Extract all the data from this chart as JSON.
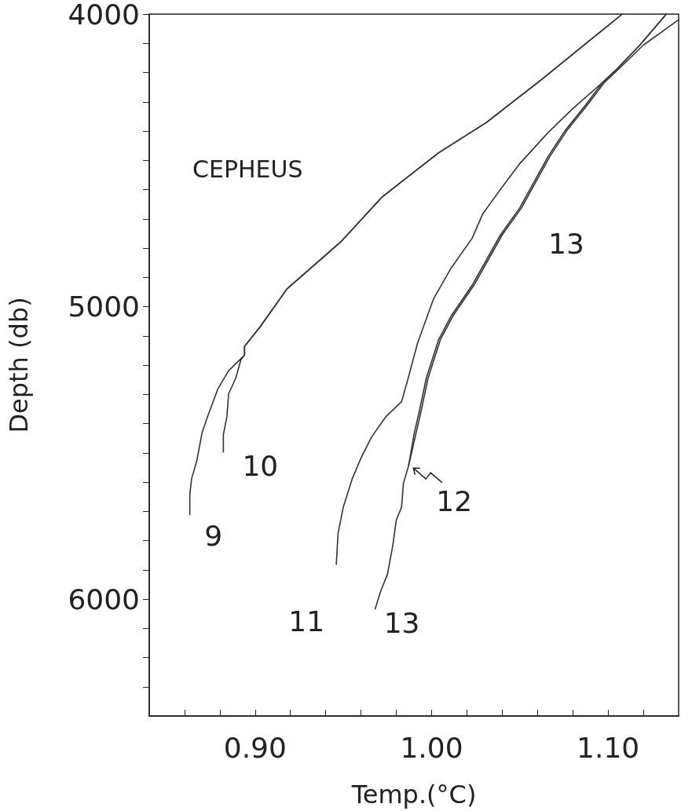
{
  "chart_data": {
    "type": "line",
    "xlabel": "Temp.(°C)",
    "ylabel": "Depth (db)",
    "xlim": [
      0.84,
      1.14
    ],
    "xticks": [
      {
        "value": 0.86,
        "label": null
      },
      {
        "value": 0.88,
        "label": null
      },
      {
        "value": 0.9,
        "label": "0.90"
      },
      {
        "value": 0.92,
        "label": null
      },
      {
        "value": 0.94,
        "label": null
      },
      {
        "value": 0.96,
        "label": null
      },
      {
        "value": 0.98,
        "label": null
      },
      {
        "value": 1.0,
        "label": "1.00"
      },
      {
        "value": 1.02,
        "label": null
      },
      {
        "value": 1.04,
        "label": null
      },
      {
        "value": 1.06,
        "label": null
      },
      {
        "value": 1.08,
        "label": null
      },
      {
        "value": 1.1,
        "label": "1.10"
      },
      {
        "value": 1.12,
        "label": null
      }
    ],
    "ylim": [
      6400,
      4000
    ],
    "yticks": [
      4000,
      {
        "value": 4100,
        "label": null
      },
      {
        "value": 4200,
        "label": null
      },
      {
        "value": 4300,
        "label": null
      },
      {
        "value": 4400,
        "label": null
      },
      {
        "value": 4500,
        "label": null
      },
      {
        "value": 4600,
        "label": null
      },
      {
        "value": 4700,
        "label": null
      },
      {
        "value": 4800,
        "label": null
      },
      {
        "value": 4900,
        "label": null
      },
      5000,
      {
        "value": 5100,
        "label": null
      },
      {
        "value": 5200,
        "label": null
      },
      {
        "value": 5300,
        "label": null
      },
      {
        "value": 5400,
        "label": null
      },
      {
        "value": 5500,
        "label": null
      },
      {
        "value": 5600,
        "label": null
      },
      {
        "value": 5700,
        "label": null
      },
      {
        "value": 5800,
        "label": null
      },
      {
        "value": 5900,
        "label": null
      },
      6000,
      {
        "value": 6100,
        "label": null
      },
      {
        "value": 6200,
        "label": null
      },
      {
        "value": 6300,
        "label": null
      }
    ],
    "grid": false,
    "legend": false,
    "marker": "none",
    "line_style": "solid",
    "annotations": [
      "CEPHEUS",
      "13"
    ],
    "series": [
      {
        "name": "9",
        "color": "#333333",
        "x": [
          1.108,
          1.062,
          1.031,
          1.004,
          0.972,
          0.949,
          0.918,
          0.903,
          0.894,
          0.894,
          0.885,
          0.879,
          0.873,
          0.87,
          0.867,
          0.864,
          0.863,
          0.863
        ],
        "values": [
          4000,
          4225,
          4371,
          4474,
          4625,
          4776,
          4940,
          5068,
          5136,
          5166,
          5219,
          5280,
          5377,
          5430,
          5526,
          5589,
          5642,
          5711
        ]
      },
      {
        "name": "10",
        "color": "#333333",
        "x": [
          1.108,
          1.062,
          1.031,
          1.004,
          0.972,
          0.949,
          0.918,
          0.903,
          0.894,
          0.894,
          0.892,
          0.889,
          0.885,
          0.884,
          0.882,
          0.882
        ],
        "values": [
          4000,
          4225,
          4371,
          4474,
          4625,
          4776,
          4940,
          5068,
          5136,
          5166,
          5181,
          5245,
          5298,
          5377,
          5438,
          5497
        ]
      },
      {
        "name": "11",
        "color": "#333333",
        "x": [
          1.133,
          1.118,
          1.105,
          1.097,
          1.08,
          1.066,
          1.05,
          1.04,
          1.029,
          1.023,
          1.011,
          1.001,
          0.992,
          0.986,
          0.983,
          0.974,
          0.966,
          0.96,
          0.955,
          0.95,
          0.947,
          0.946
        ],
        "values": [
          4000,
          4106,
          4188,
          4233,
          4323,
          4405,
          4511,
          4591,
          4683,
          4766,
          4869,
          4975,
          5126,
          5261,
          5325,
          5377,
          5446,
          5518,
          5589,
          5685,
          5775,
          5881
        ]
      },
      {
        "name": "12",
        "color": "#333333",
        "x": [
          1.133,
          1.118,
          1.105,
          1.097,
          1.087,
          1.076,
          1.066,
          1.05,
          1.039,
          1.023,
          1.011,
          1.004,
          0.997,
          0.993,
          0.99,
          0.987
        ],
        "values": [
          4000,
          4106,
          4188,
          4233,
          4313,
          4395,
          4487,
          4662,
          4755,
          4927,
          5033,
          5113,
          5245,
          5359,
          5438,
          5544
        ]
      },
      {
        "name": "13",
        "color": "#333333",
        "x": [
          1.14,
          1.12,
          1.106,
          1.098,
          1.088,
          1.077,
          1.067,
          1.051,
          1.04,
          1.024,
          1.012,
          1.005,
          0.998,
          0.994,
          0.991,
          0.987,
          0.984,
          0.983,
          0.98,
          0.978,
          0.975,
          0.971,
          0.968
        ],
        "values": [
          4019,
          4106,
          4188,
          4233,
          4313,
          4395,
          4487,
          4662,
          4755,
          4927,
          5033,
          5113,
          5245,
          5359,
          5438,
          5544,
          5605,
          5685,
          5730,
          5817,
          5915,
          5976,
          6034
        ]
      }
    ]
  }
}
